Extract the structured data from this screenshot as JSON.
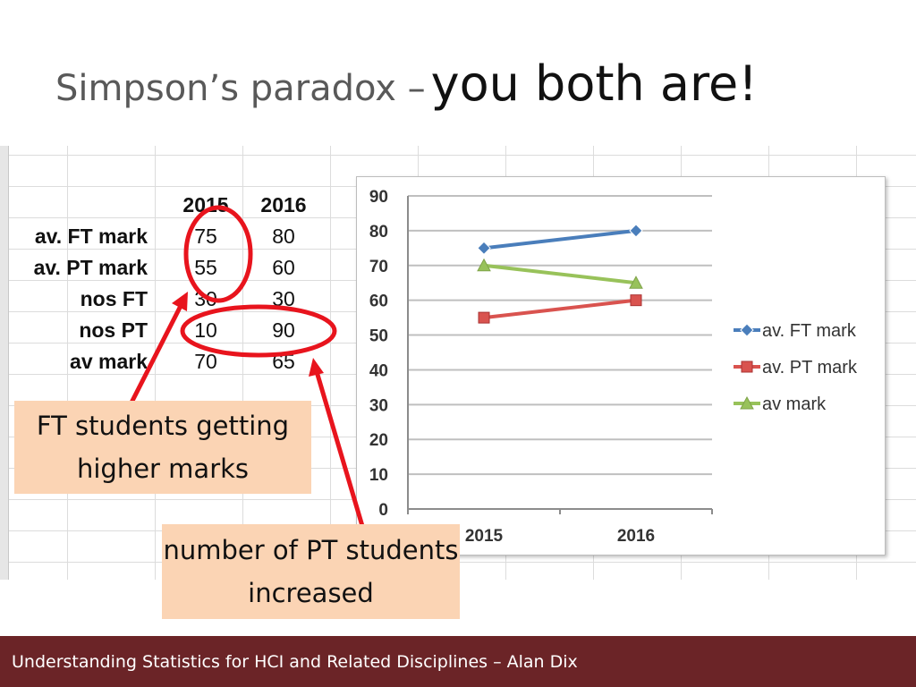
{
  "slide": {
    "title_part1": "Simpson’s paradox –",
    "title_part2": "you both are!",
    "footer": "Understanding Statistics for HCI and Related Disciplines  –  Alan Dix"
  },
  "table": {
    "columns": [
      "2015",
      "2016"
    ],
    "rows": [
      {
        "label": "av. FT mark",
        "values": [
          "75",
          "80"
        ]
      },
      {
        "label": "av. PT mark",
        "values": [
          "55",
          "60"
        ]
      },
      {
        "label": "nos FT",
        "values": [
          "30",
          "30"
        ]
      },
      {
        "label": "nos PT",
        "values": [
          "10",
          "90"
        ]
      },
      {
        "label": "av mark",
        "values": [
          "70",
          "65"
        ]
      }
    ]
  },
  "callouts": {
    "ft": "FT students getting higher marks",
    "pt": "number of PT students increased"
  },
  "colors": {
    "highlight": "#e8141d",
    "callout_fill": "#fbd4b4",
    "footer": "#6b2427"
  },
  "chart_data": {
    "type": "line",
    "x": [
      "2015",
      "2016"
    ],
    "ylim": [
      0,
      90
    ],
    "yticks": [
      0,
      10,
      20,
      30,
      40,
      50,
      60,
      70,
      80,
      90
    ],
    "grid": true,
    "legend": "right",
    "series": [
      {
        "name": "av. FT mark",
        "values": [
          75,
          80
        ],
        "color": "#4a7ebb",
        "marker": "diamond"
      },
      {
        "name": "av. PT mark",
        "values": [
          55,
          60
        ],
        "color": "#d9534f",
        "marker": "square"
      },
      {
        "name": "av mark",
        "values": [
          70,
          65
        ],
        "color": "#98c25a",
        "marker": "triangle"
      }
    ]
  }
}
